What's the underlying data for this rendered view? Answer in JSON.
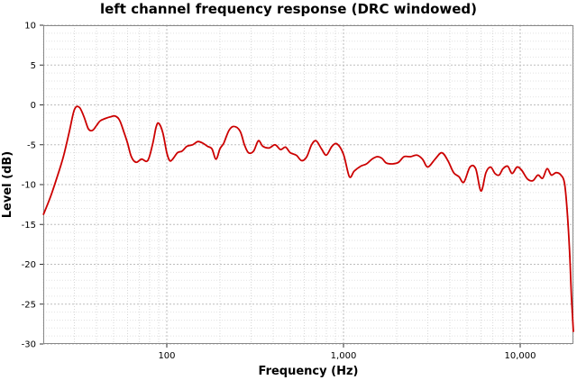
{
  "chart_data": {
    "type": "line",
    "title": "left channel frequency response (DRC windowed)",
    "xlabel": "Frequency (Hz)",
    "ylabel": "Level (dB)",
    "x_scale": "log",
    "xlim": [
      20,
      20000
    ],
    "ylim": [
      -30,
      10
    ],
    "x_tick_labels": [
      {
        "value": 100,
        "label": "100"
      },
      {
        "value": 1000,
        "label": "1,000"
      },
      {
        "value": 10000,
        "label": "10,000"
      }
    ],
    "y_tick_labels": [
      "10",
      "5",
      "0",
      "-5",
      "-10",
      "-15",
      "-20",
      "-25",
      "-30"
    ],
    "y_ticks": [
      10,
      5,
      0,
      -5,
      -10,
      -15,
      -20,
      -25,
      -30
    ],
    "grid": true,
    "legend": "none",
    "series": [
      {
        "color": "#cc0000",
        "x": [
          20,
          22,
          24,
          26,
          28,
          30,
          32,
          34,
          36,
          38,
          40,
          42,
          45,
          48,
          51,
          54,
          57,
          60,
          63,
          67,
          72,
          78,
          83,
          87,
          90,
          95,
          100,
          104,
          108,
          115,
          122,
          130,
          140,
          150,
          160,
          170,
          180,
          190,
          200,
          210,
          225,
          240,
          260,
          275,
          290,
          310,
          330,
          350,
          380,
          410,
          440,
          470,
          500,
          540,
          580,
          620,
          660,
          700,
          750,
          800,
          860,
          920,
          1000,
          1080,
          1150,
          1250,
          1350,
          1450,
          1550,
          1650,
          1750,
          1900,
          2050,
          2200,
          2400,
          2600,
          2800,
          3000,
          3300,
          3600,
          3900,
          4200,
          4500,
          4800,
          5200,
          5600,
          6000,
          6400,
          6800,
          7200,
          7600,
          8000,
          8500,
          9000,
          9600,
          10200,
          11000,
          11800,
          12600,
          13400,
          14200,
          15000,
          16000,
          17000,
          17800,
          18400,
          19000,
          19500,
          20000
        ],
        "y": [
          -13.8,
          -11.5,
          -9,
          -6.5,
          -3.5,
          -0.6,
          -0.3,
          -1.5,
          -3,
          -3.2,
          -2.6,
          -2,
          -1.7,
          -1.5,
          -1.4,
          -1.9,
          -3.3,
          -4.8,
          -6.5,
          -7.2,
          -6.8,
          -7,
          -5,
          -2.8,
          -2.3,
          -3.5,
          -6,
          -7,
          -6.8,
          -6,
          -5.8,
          -5.2,
          -5,
          -4.6,
          -4.8,
          -5.2,
          -5.5,
          -6.8,
          -5.5,
          -4.8,
          -3.2,
          -2.7,
          -3.3,
          -5,
          -6,
          -5.8,
          -4.5,
          -5.2,
          -5.4,
          -5,
          -5.6,
          -5.3,
          -6,
          -6.3,
          -7,
          -6.5,
          -5,
          -4.5,
          -5.5,
          -6.3,
          -5.2,
          -4.9,
          -6.2,
          -9,
          -8.3,
          -7.7,
          -7.4,
          -6.8,
          -6.5,
          -6.7,
          -7.3,
          -7.4,
          -7.2,
          -6.5,
          -6.5,
          -6.3,
          -6.8,
          -7.8,
          -6.8,
          -6,
          -7,
          -8.5,
          -9,
          -9.7,
          -7.8,
          -8,
          -10.8,
          -8.5,
          -7.8,
          -8.6,
          -8.8,
          -8,
          -7.7,
          -8.6,
          -7.8,
          -8.2,
          -9.3,
          -9.5,
          -8.8,
          -9.2,
          -8,
          -8.8,
          -8.5,
          -8.8,
          -9.8,
          -13,
          -18,
          -24,
          -28.5
        ]
      }
    ]
  }
}
